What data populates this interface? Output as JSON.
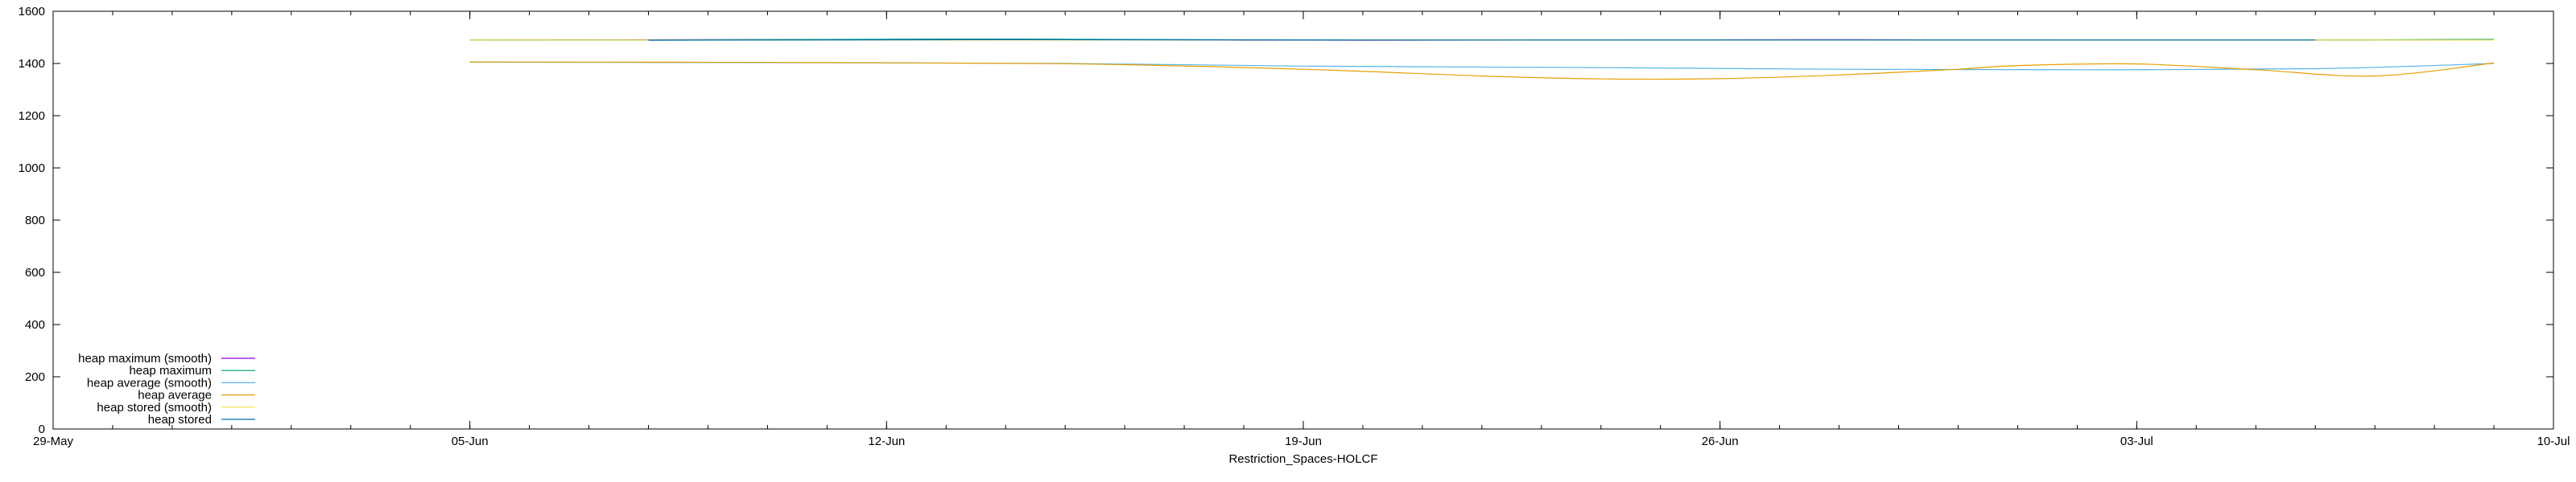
{
  "chart_data": {
    "type": "line",
    "title": "",
    "xlabel": "Restriction_Spaces-HOLCF",
    "ylabel": "",
    "xlim": [
      "2024-05-29",
      "2024-07-10"
    ],
    "ylim": [
      0,
      1600
    ],
    "x_ticks": [
      {
        "label": "29-May",
        "date": "2024-05-29"
      },
      {
        "label": "05-Jun",
        "date": "2024-06-05"
      },
      {
        "label": "12-Jun",
        "date": "2024-06-12"
      },
      {
        "label": "19-Jun",
        "date": "2024-06-19"
      },
      {
        "label": "26-Jun",
        "date": "2024-06-26"
      },
      {
        "label": "03-Jul",
        "date": "2024-07-03"
      },
      {
        "label": "10-Jul",
        "date": "2024-07-10"
      }
    ],
    "y_ticks": [
      0,
      200,
      400,
      600,
      800,
      1000,
      1200,
      1400,
      1600
    ],
    "grid": false,
    "legend_position": "bottom-left",
    "series": [
      {
        "name": "heap maximum (smooth)",
        "color": "#9400d3",
        "points": [
          [
            "2024-06-05",
            1490
          ],
          [
            "2024-06-09",
            1491
          ],
          [
            "2024-06-12",
            1492
          ],
          [
            "2024-06-14",
            1493
          ],
          [
            "2024-06-17",
            1490
          ],
          [
            "2024-06-20",
            1489
          ],
          [
            "2024-06-24",
            1490
          ],
          [
            "2024-06-28",
            1491
          ],
          [
            "2024-07-02",
            1490
          ],
          [
            "2024-07-06",
            1490
          ],
          [
            "2024-07-09",
            1491
          ]
        ]
      },
      {
        "name": "heap maximum",
        "color": "#009e73",
        "points": [
          [
            "2024-06-05",
            1490
          ],
          [
            "2024-06-08",
            1490
          ],
          [
            "2024-06-12",
            1493
          ],
          [
            "2024-06-15",
            1493
          ],
          [
            "2024-06-19",
            1490
          ],
          [
            "2024-06-24",
            1490
          ],
          [
            "2024-06-28",
            1490
          ],
          [
            "2024-07-02",
            1490
          ],
          [
            "2024-07-06",
            1490
          ],
          [
            "2024-07-09",
            1492
          ]
        ]
      },
      {
        "name": "heap average (smooth)",
        "color": "#56b4e9",
        "points": [
          [
            "2024-06-05",
            1405
          ],
          [
            "2024-06-10",
            1403
          ],
          [
            "2024-06-15",
            1400
          ],
          [
            "2024-06-19",
            1390
          ],
          [
            "2024-06-24",
            1384
          ],
          [
            "2024-06-28",
            1378
          ],
          [
            "2024-07-02",
            1376
          ],
          [
            "2024-07-06",
            1380
          ],
          [
            "2024-07-09",
            1400
          ]
        ]
      },
      {
        "name": "heap average",
        "color": "#e69f00",
        "points": [
          [
            "2024-06-05",
            1406
          ],
          [
            "2024-06-10",
            1404
          ],
          [
            "2024-06-15",
            1399
          ],
          [
            "2024-06-19",
            1378
          ],
          [
            "2024-06-22",
            1352
          ],
          [
            "2024-06-24",
            1341
          ],
          [
            "2024-06-26",
            1342
          ],
          [
            "2024-06-28",
            1356
          ],
          [
            "2024-06-30",
            1378
          ],
          [
            "2024-07-01",
            1392
          ],
          [
            "2024-07-03",
            1398
          ],
          [
            "2024-07-05",
            1376
          ],
          [
            "2024-07-07",
            1352
          ],
          [
            "2024-07-09",
            1402
          ]
        ]
      },
      {
        "name": "heap stored (smooth)",
        "color": "#f0e442",
        "points": [
          [
            "2024-06-05",
            1490
          ],
          [
            "2024-06-12",
            1490
          ],
          [
            "2024-06-19",
            1490
          ],
          [
            "2024-06-26",
            1490
          ],
          [
            "2024-07-03",
            1490
          ],
          [
            "2024-07-09",
            1490
          ]
        ]
      },
      {
        "name": "heap stored",
        "color": "#0072b2",
        "points": [
          [
            "2024-06-08",
            1489
          ],
          [
            "2024-06-14",
            1491
          ],
          [
            "2024-06-20",
            1490
          ],
          [
            "2024-06-26",
            1490
          ],
          [
            "2024-07-02",
            1490
          ],
          [
            "2024-07-06",
            1490
          ]
        ]
      }
    ]
  }
}
